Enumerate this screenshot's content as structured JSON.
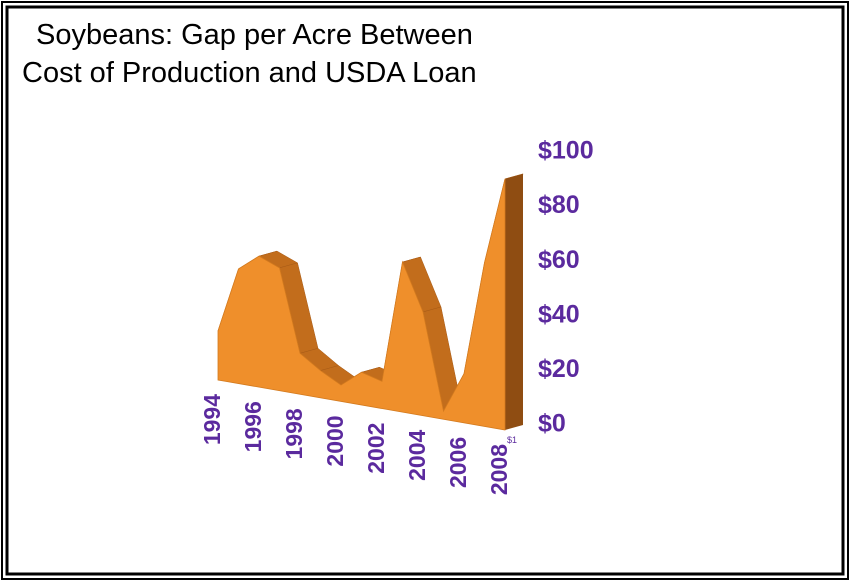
{
  "chart_data": {
    "type": "area3d",
    "title": [
      "Soybeans: Gap per Acre Between",
      "Cost of Production and USDA Loan"
    ],
    "categories": [
      "1994",
      null,
      "1996",
      null,
      "1998",
      null,
      "2000",
      null,
      "2002",
      null,
      "2004",
      null,
      "2006",
      null,
      "2008"
    ],
    "values": [
      18,
      42,
      48,
      45,
      15,
      10,
      6,
      12,
      10,
      55,
      38,
      3,
      18,
      60,
      92
    ],
    "color": "#ef8f2b",
    "ylim": [
      0,
      100
    ],
    "yticks": [
      {
        "value": 0,
        "label": "$0"
      },
      {
        "value": 20,
        "label": "$20"
      },
      {
        "value": 40,
        "label": "$40"
      },
      {
        "value": 60,
        "label": "$60"
      },
      {
        "value": 80,
        "label": "$80"
      },
      {
        "value": 100,
        "label": "$100"
      }
    ],
    "annotation": "$1"
  }
}
